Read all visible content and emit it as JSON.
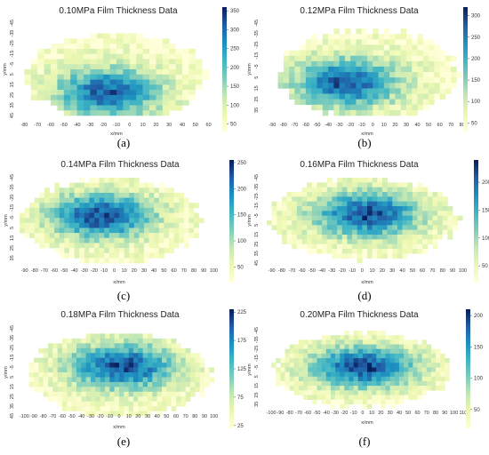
{
  "figure": {
    "panels": [
      {
        "caption": "(a)",
        "colorbar_ticks": [
          350,
          300,
          250,
          200,
          150,
          100,
          50
        ]
      },
      {
        "caption": "(b)",
        "colorbar_ticks": [
          300,
          250,
          200,
          150,
          100,
          50
        ]
      },
      {
        "caption": "(c)",
        "colorbar_ticks": [
          250,
          200,
          150,
          100,
          50
        ]
      },
      {
        "caption": "(d)",
        "colorbar_ticks": [
          200,
          150,
          100,
          50
        ]
      },
      {
        "caption": "(e)",
        "colorbar_ticks": [
          225,
          175,
          125,
          75,
          25
        ]
      },
      {
        "caption": "(f)",
        "colorbar_ticks": [
          200,
          150,
          100,
          50
        ]
      }
    ]
  },
  "chart_data": [
    {
      "type": "heatmap",
      "title": "0.10MPa Film Thickness Data",
      "xlabel": "x/mm",
      "ylabel": "y/mm",
      "x_ticks": [
        "-80",
        "-70",
        "-60",
        "-50",
        "-40",
        "-30",
        "-20",
        "-10",
        "0",
        "10",
        "20",
        "30",
        "40",
        "50",
        "60"
      ],
      "y_ticks": [
        "-45",
        "-35",
        "-25",
        "-15",
        "-5",
        "5",
        "15",
        "25",
        "35",
        "45"
      ],
      "x_range": [
        -85,
        65
      ],
      "y_range": [
        -45,
        45
      ],
      "value_range": [
        30,
        360
      ],
      "colormap": "YlGnBu",
      "description_of_distribution": "elliptical spot; highest thickness (~300-350) concentrated around x -30..10, y 15..30"
    },
    {
      "type": "heatmap",
      "title": "0.12MPa Film Thickness Data",
      "xlabel": "x/mm",
      "ylabel": "y/mm",
      "x_ticks": [
        "-90",
        "-80",
        "-70",
        "-60",
        "-50",
        "-40",
        "-30",
        "-20",
        "-10",
        "0",
        "10",
        "20",
        "30",
        "40",
        "50",
        "60",
        "70",
        "80"
      ],
      "y_ticks": [
        "-45",
        "-35",
        "-25",
        "-15",
        "-5",
        "5",
        "15",
        "25",
        "35"
      ],
      "x_range": [
        -95,
        85
      ],
      "y_range": [
        -45,
        40
      ],
      "value_range": [
        30,
        320
      ],
      "colormap": "YlGnBu",
      "description_of_distribution": "elliptical spot; maximum near x -40..10, y 15..30"
    },
    {
      "type": "heatmap",
      "title": "0.14MPa Film Thickness Data",
      "xlabel": "x/mm",
      "ylabel": "y/mm",
      "x_ticks": [
        "-90",
        "-80",
        "-70",
        "-60",
        "-50",
        "-40",
        "-30",
        "-20",
        "-10",
        "0",
        "10",
        "20",
        "30",
        "40",
        "50",
        "60",
        "70",
        "80",
        "90",
        "100"
      ],
      "y_ticks": [
        "-45",
        "-35",
        "-25",
        "-15",
        "-5",
        "5",
        "15",
        "25",
        "35"
      ],
      "x_range": [
        -95,
        105
      ],
      "y_range": [
        -45,
        40
      ],
      "value_range": [
        20,
        255
      ],
      "colormap": "YlGnBu",
      "description_of_distribution": "elliptical spot; high values (~250) centered around x -20..10, y -10..5"
    },
    {
      "type": "heatmap",
      "title": "0.16MPa Film Thickness Data",
      "xlabel": "x/mm",
      "ylabel": "y/mm",
      "x_ticks": [
        "-90",
        "-80",
        "-70",
        "-60",
        "-50",
        "-40",
        "-30",
        "-20",
        "-10",
        "0",
        "10",
        "20",
        "30",
        "40",
        "50",
        "60",
        "70",
        "80",
        "90",
        "100"
      ],
      "y_ticks": [
        "-45",
        "-35",
        "-25",
        "-15",
        "-5",
        "5",
        "15",
        "25",
        "35",
        "45"
      ],
      "x_range": [
        -95,
        105
      ],
      "y_range": [
        -45,
        45
      ],
      "value_range": [
        20,
        240
      ],
      "colormap": "YlGnBu",
      "description_of_distribution": "elliptical spot; maximum near x -5..10, y -10..0"
    },
    {
      "type": "heatmap",
      "title": "0.18MPa Film Thickness Data",
      "xlabel": "x/mm",
      "ylabel": "y/mm",
      "x_ticks": [
        "-100",
        "-90",
        "-80",
        "-70",
        "-60",
        "-50",
        "-40",
        "-30",
        "-20",
        "-10",
        "0",
        "10",
        "20",
        "30",
        "40",
        "50",
        "60",
        "70",
        "80",
        "90",
        "100"
      ],
      "y_ticks": [
        "-45",
        "-35",
        "-25",
        "-15",
        "-5",
        "5",
        "15",
        "25",
        "35",
        "45"
      ],
      "x_range": [
        -105,
        105
      ],
      "y_range": [
        -45,
        45
      ],
      "value_range": [
        20,
        230
      ],
      "colormap": "YlGnBu",
      "description_of_distribution": "elliptical spot; maximum near x -10..20, y -10..0"
    },
    {
      "type": "heatmap",
      "title": "0.20MPa Film Thickness Data",
      "xlabel": "x/mm",
      "ylabel": "y/mm",
      "x_ticks": [
        "-100",
        "-90",
        "-80",
        "-70",
        "-60",
        "-50",
        "-40",
        "-30",
        "-20",
        "-10",
        "0",
        "10",
        "20",
        "30",
        "40",
        "50",
        "60",
        "70",
        "80",
        "90",
        "100",
        "110"
      ],
      "y_ticks": [
        "-45",
        "-35",
        "-25",
        "-15",
        "-5",
        "5",
        "15",
        "25",
        "35"
      ],
      "x_range": [
        -105,
        115
      ],
      "y_range": [
        -45,
        40
      ],
      "value_range": [
        20,
        210
      ],
      "colormap": "YlGnBu",
      "description_of_distribution": "elliptical spot; maximum near x -5..15, y 0..10"
    }
  ]
}
